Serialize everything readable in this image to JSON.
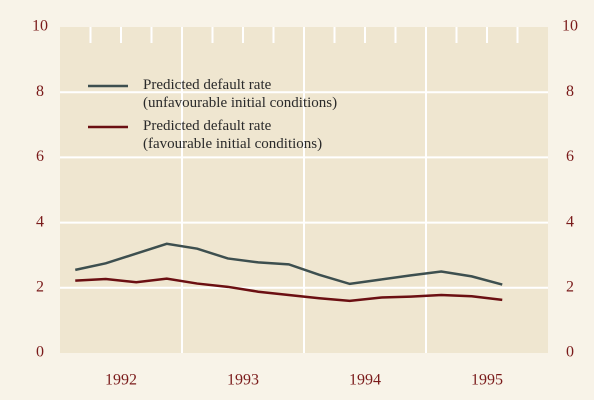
{
  "chart_data": {
    "type": "line",
    "x": [
      1992.125,
      1992.375,
      1992.625,
      1992.875,
      1993.125,
      1993.375,
      1993.625,
      1993.875,
      1994.125,
      1994.375,
      1994.625,
      1994.875,
      1995.125,
      1995.375,
      1995.625
    ],
    "series": [
      {
        "name": "Predicted default rate\n(unfavourable initial conditions)",
        "color": "#3d4f4f",
        "values": [
          2.55,
          2.75,
          3.05,
          3.35,
          3.2,
          2.9,
          2.78,
          2.72,
          2.4,
          2.12,
          2.25,
          2.38,
          2.5,
          2.35,
          2.1
        ]
      },
      {
        "name": "Predicted default rate\n(favourable initial conditions)",
        "color": "#6b0f12",
        "values": [
          2.22,
          2.27,
          2.17,
          2.28,
          2.13,
          2.03,
          1.88,
          1.78,
          1.68,
          1.6,
          1.7,
          1.73,
          1.78,
          1.74,
          1.63
        ]
      }
    ],
    "xlim": [
      1992,
      1996
    ],
    "xticks": [
      {
        "value": 1992.5,
        "label": "1992"
      },
      {
        "value": 1993.5,
        "label": "1993"
      },
      {
        "value": 1994.5,
        "label": "1994"
      },
      {
        "value": 1995.5,
        "label": "1995"
      }
    ],
    "ylim": [
      0,
      10
    ],
    "yticks": [
      0,
      2,
      4,
      6,
      8,
      10
    ],
    "grid": true
  }
}
